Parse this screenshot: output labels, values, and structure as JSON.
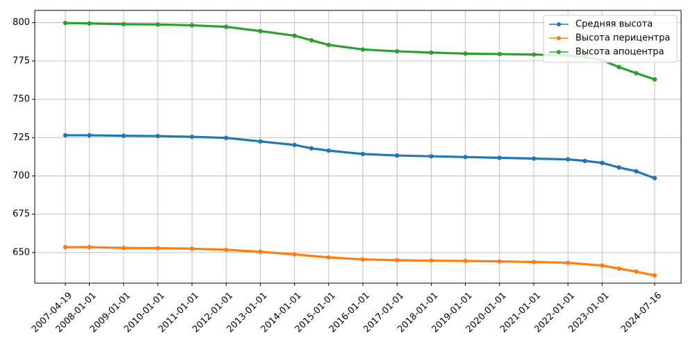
{
  "chart_data": {
    "type": "line",
    "title": "",
    "xlabel": "",
    "ylabel": "",
    "grid": true,
    "legend_position": "top-right",
    "x_range": [
      "2007-04-19",
      "2024-07-16"
    ],
    "ylim": [
      630,
      808
    ],
    "x_ticks": [
      "2007-04-19",
      "2008-01-01",
      "2009-01-01",
      "2010-01-01",
      "2011-01-01",
      "2012-01-01",
      "2013-01-01",
      "2014-01-01",
      "2015-01-01",
      "2016-01-01",
      "2017-01-01",
      "2018-01-01",
      "2019-01-01",
      "2020-01-01",
      "2021-01-01",
      "2022-01-01",
      "2023-01-01",
      "2024-07-16"
    ],
    "y_ticks": [
      650,
      675,
      700,
      725,
      750,
      775,
      800
    ],
    "series": [
      {
        "name": "Средняя высота",
        "color": "#1f77b4",
        "marker": "circle",
        "x": [
          "2007-04-19",
          "2008-01-01",
          "2009-01-01",
          "2010-01-01",
          "2011-01-01",
          "2012-01-01",
          "2013-01-01",
          "2014-01-01",
          "2014-07-01",
          "2015-01-01",
          "2016-01-01",
          "2017-01-01",
          "2018-01-01",
          "2019-01-01",
          "2020-01-01",
          "2021-01-01",
          "2022-01-01",
          "2022-07-01",
          "2023-01-01",
          "2023-07-01",
          "2024-01-01",
          "2024-07-16"
        ],
        "y": [
          726.5,
          726.5,
          726.2,
          726,
          725.5,
          724.8,
          722.5,
          720.2,
          718,
          716.5,
          714.3,
          713.3,
          712.8,
          712.3,
          711.8,
          711.3,
          710.8,
          709.8,
          708.5,
          705.5,
          703,
          698.5
        ]
      },
      {
        "name": "Высота перицентра",
        "color": "#ff7f0e",
        "marker": "circle",
        "x": [
          "2007-04-19",
          "2008-01-01",
          "2009-01-01",
          "2010-01-01",
          "2011-01-01",
          "2012-01-01",
          "2013-01-01",
          "2014-01-01",
          "2015-01-01",
          "2016-01-01",
          "2017-01-01",
          "2018-01-01",
          "2019-01-01",
          "2020-01-01",
          "2021-01-01",
          "2022-01-01",
          "2023-01-01",
          "2023-07-01",
          "2024-01-01",
          "2024-07-16"
        ],
        "y": [
          653.5,
          653.5,
          653,
          652.8,
          652.5,
          651.8,
          650.5,
          648.8,
          646.8,
          645.5,
          645,
          644.7,
          644.5,
          644.2,
          643.8,
          643.3,
          641.5,
          639.5,
          637.5,
          635
        ]
      },
      {
        "name": "Высота апоцентра",
        "color": "#2ca02c",
        "marker": "circle",
        "x": [
          "2007-04-19",
          "2008-01-01",
          "2009-01-01",
          "2010-01-01",
          "2011-01-01",
          "2012-01-01",
          "2013-01-01",
          "2014-01-01",
          "2014-07-01",
          "2015-01-01",
          "2016-01-01",
          "2017-01-01",
          "2018-01-01",
          "2019-01-01",
          "2020-01-01",
          "2021-01-01",
          "2022-01-01",
          "2022-07-01",
          "2023-01-01",
          "2023-07-01",
          "2024-01-01",
          "2024-07-16"
        ],
        "y": [
          799.8,
          799.5,
          799,
          798.8,
          798.3,
          797.3,
          794.5,
          791.5,
          788.5,
          785.5,
          782.5,
          781.3,
          780.5,
          779.8,
          779.5,
          779.2,
          778.5,
          777.5,
          775.5,
          771,
          767,
          763
        ]
      }
    ]
  }
}
